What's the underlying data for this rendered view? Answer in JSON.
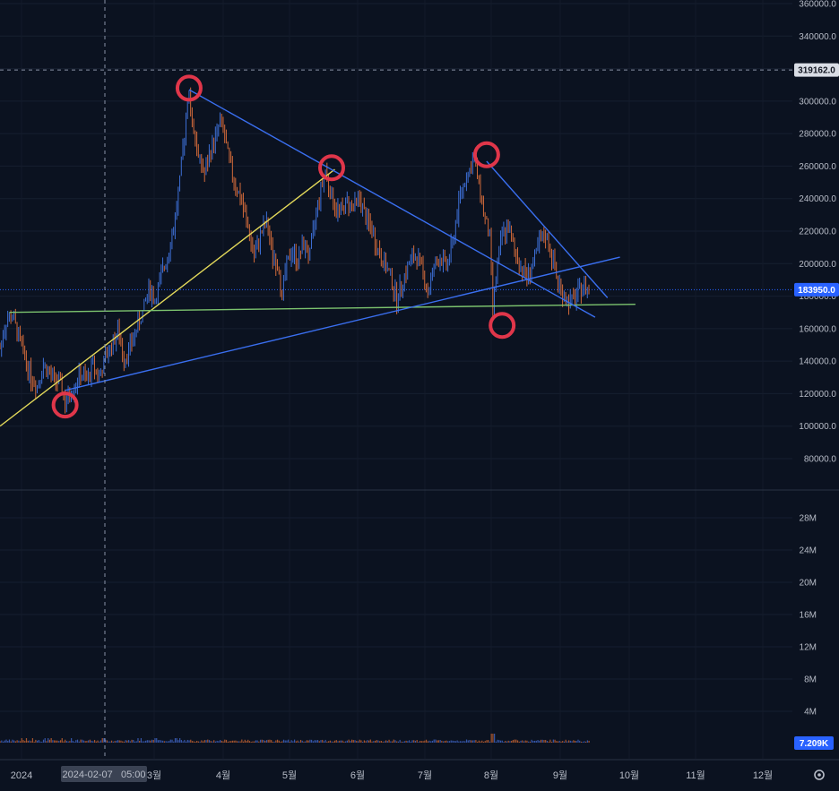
{
  "chart_data": {
    "type": "candlestick",
    "price_axis": {
      "ticks": [
        "360000.0",
        "340000.0",
        "320000.0",
        "300000.0",
        "280000.0",
        "260000.0",
        "240000.0",
        "220000.0",
        "200000.0",
        "180000.0",
        "160000.0",
        "140000.0",
        "120000.0",
        "100000.0",
        "80000.0"
      ],
      "tick_values": [
        360000,
        340000,
        320000,
        300000,
        280000,
        260000,
        240000,
        220000,
        200000,
        180000,
        160000,
        140000,
        120000,
        100000,
        80000
      ],
      "crosshair_label": "319162.0",
      "crosshair_value": 319162,
      "last_price_label": "183950.0",
      "last_price_value": 183950
    },
    "volume_axis": {
      "ticks": [
        "28M",
        "24M",
        "20M",
        "16M",
        "12M",
        "8M",
        "4M"
      ],
      "tick_values": [
        28,
        24,
        20,
        16,
        12,
        8,
        4
      ],
      "last_volume_label": "7.209K"
    },
    "time_axis": {
      "labels": [
        "2024",
        "3월",
        "4월",
        "5월",
        "6월",
        "7월",
        "8월",
        "9월",
        "10월",
        "11월",
        "12월"
      ],
      "crosshair_label": "2024-02-07   05:00"
    },
    "price_path": [
      [
        0,
        148000
      ],
      [
        2,
        165000
      ],
      [
        4,
        168000
      ],
      [
        6,
        155000
      ],
      [
        8,
        142000
      ],
      [
        10,
        130000
      ],
      [
        12,
        125000
      ],
      [
        14,
        138000
      ],
      [
        16,
        132000
      ],
      [
        18,
        128000
      ],
      [
        20,
        124000
      ],
      [
        21,
        112000
      ],
      [
        22,
        118000
      ],
      [
        24,
        125000
      ],
      [
        26,
        132000
      ],
      [
        28,
        128000
      ],
      [
        30,
        138000
      ],
      [
        32,
        130000
      ],
      [
        34,
        142000
      ],
      [
        36,
        150000
      ],
      [
        38,
        158000
      ],
      [
        39,
        150000
      ],
      [
        40,
        142000
      ],
      [
        42,
        148000
      ],
      [
        44,
        160000
      ],
      [
        46,
        170000
      ],
      [
        48,
        185000
      ],
      [
        50,
        178000
      ],
      [
        52,
        192000
      ],
      [
        54,
        205000
      ],
      [
        56,
        222000
      ],
      [
        58,
        250000
      ],
      [
        60,
        290000
      ],
      [
        61,
        305000
      ],
      [
        62,
        288000
      ],
      [
        64,
        265000
      ],
      [
        66,
        255000
      ],
      [
        68,
        270000
      ],
      [
        70,
        280000
      ],
      [
        71,
        288000
      ],
      [
        72,
        282000
      ],
      [
        74,
        262000
      ],
      [
        76,
        248000
      ],
      [
        78,
        238000
      ],
      [
        80,
        222000
      ],
      [
        82,
        204000
      ],
      [
        84,
        218000
      ],
      [
        86,
        225000
      ],
      [
        88,
        205000
      ],
      [
        90,
        198000
      ],
      [
        91,
        178000
      ],
      [
        92,
        195000
      ],
      [
        94,
        208000
      ],
      [
        96,
        202000
      ],
      [
        98,
        212000
      ],
      [
        100,
        205000
      ],
      [
        102,
        232000
      ],
      [
        104,
        250000
      ],
      [
        105,
        258000
      ],
      [
        106,
        248000
      ],
      [
        108,
        235000
      ],
      [
        110,
        232000
      ],
      [
        112,
        238000
      ],
      [
        114,
        235000
      ],
      [
        116,
        240000
      ],
      [
        118,
        228000
      ],
      [
        120,
        220000
      ],
      [
        122,
        208000
      ],
      [
        124,
        200000
      ],
      [
        126,
        192000
      ],
      [
        128,
        178000
      ],
      [
        130,
        190000
      ],
      [
        132,
        200000
      ],
      [
        134,
        205000
      ],
      [
        136,
        198000
      ],
      [
        138,
        182000
      ],
      [
        140,
        198000
      ],
      [
        142,
        204000
      ],
      [
        144,
        198000
      ],
      [
        146,
        212000
      ],
      [
        148,
        238000
      ],
      [
        150,
        252000
      ],
      [
        152,
        260000
      ],
      [
        153,
        264000
      ],
      [
        154,
        255000
      ],
      [
        156,
        232000
      ],
      [
        158,
        215000
      ],
      [
        159,
        172000
      ],
      [
        160,
        192000
      ],
      [
        162,
        218000
      ],
      [
        164,
        222000
      ],
      [
        166,
        208000
      ],
      [
        168,
        198000
      ],
      [
        170,
        192000
      ],
      [
        172,
        200000
      ],
      [
        174,
        212000
      ],
      [
        176,
        218000
      ],
      [
        178,
        205000
      ],
      [
        180,
        188000
      ],
      [
        182,
        180000
      ],
      [
        184,
        176000
      ],
      [
        186,
        180000
      ],
      [
        188,
        186000
      ],
      [
        190,
        183950
      ]
    ],
    "price_path_span": 190,
    "volume_spike_at": 159,
    "trendlines": [
      {
        "from": [
          0,
          100000
        ],
        "to": [
          108,
          258000
        ],
        "color": "#e3d95a"
      },
      {
        "from": [
          3,
          170000
        ],
        "to": [
          205,
          175000
        ],
        "color": "#7cc36e"
      },
      {
        "from": [
          21,
          122000
        ],
        "to": [
          200,
          204000
        ],
        "color": "#3a6ff0"
      },
      {
        "from": [
          61,
          307000
        ],
        "to": [
          192,
          167000
        ],
        "color": "#3a6ff0"
      },
      {
        "from": [
          157,
          263000
        ],
        "to": [
          196,
          179000
        ],
        "color": "#3a6ff0"
      }
    ],
    "markers": [
      [
        61,
        308000
      ],
      [
        21,
        113000
      ],
      [
        107,
        259000
      ],
      [
        157,
        267000
      ],
      [
        162,
        162000
      ]
    ]
  }
}
